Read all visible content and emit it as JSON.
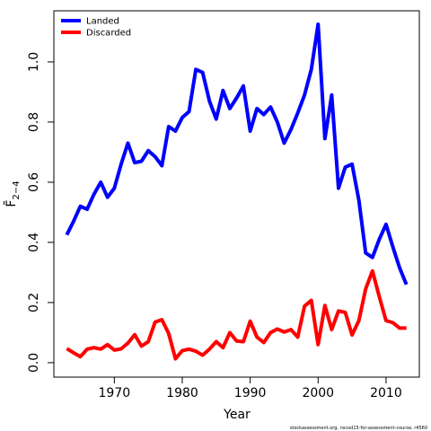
{
  "chart_data": {
    "type": "line",
    "x_label": "Year",
    "y_label": "F̄",
    "y_label_subscript": "2−4",
    "footnote": "stockassessment.org, nscod15-for-assessment-course, r4560",
    "x": [
      1963,
      1964,
      1965,
      1966,
      1967,
      1968,
      1969,
      1970,
      1971,
      1972,
      1973,
      1974,
      1975,
      1976,
      1977,
      1978,
      1979,
      1980,
      1981,
      1982,
      1983,
      1984,
      1985,
      1986,
      1987,
      1988,
      1989,
      1990,
      1991,
      1992,
      1993,
      1994,
      1995,
      1996,
      1997,
      1998,
      1999,
      2000,
      2001,
      2002,
      2003,
      2004,
      2005,
      2006,
      2007,
      2008,
      2009,
      2010,
      2011,
      2012,
      2013
    ],
    "series": [
      {
        "name": "Landed",
        "color": "#0000ff",
        "values": [
          0.425,
          0.47,
          0.52,
          0.51,
          0.56,
          0.6,
          0.55,
          0.58,
          0.66,
          0.73,
          0.665,
          0.67,
          0.705,
          0.685,
          0.655,
          0.785,
          0.77,
          0.815,
          0.835,
          0.975,
          0.965,
          0.87,
          0.81,
          0.905,
          0.845,
          0.88,
          0.92,
          0.77,
          0.845,
          0.825,
          0.85,
          0.8,
          0.73,
          0.775,
          0.83,
          0.89,
          0.975,
          1.125,
          0.745,
          0.89,
          0.58,
          0.65,
          0.66,
          0.54,
          0.365,
          0.35,
          0.41,
          0.46,
          0.385,
          0.315,
          0.26
        ]
      },
      {
        "name": "Discarded",
        "color": "#ff0000",
        "values": [
          0.047,
          0.033,
          0.02,
          0.045,
          0.05,
          0.045,
          0.06,
          0.042,
          0.046,
          0.065,
          0.093,
          0.055,
          0.07,
          0.135,
          0.143,
          0.097,
          0.013,
          0.04,
          0.045,
          0.038,
          0.025,
          0.045,
          0.07,
          0.05,
          0.1,
          0.072,
          0.07,
          0.138,
          0.085,
          0.067,
          0.1,
          0.112,
          0.102,
          0.11,
          0.085,
          0.188,
          0.207,
          0.06,
          0.19,
          0.11,
          0.172,
          0.167,
          0.092,
          0.14,
          0.245,
          0.305,
          0.22,
          0.14,
          0.133,
          0.115,
          0.115
        ]
      }
    ],
    "xlim": [
      1961.1,
      2014.9
    ],
    "xticks": [
      1970,
      1980,
      1990,
      2000,
      2010
    ],
    "ylim": [
      -0.048,
      1.17
    ],
    "yticks": [
      {
        "value": 0,
        "label": "0.0"
      },
      0.2,
      0.4,
      0.6,
      0.8,
      {
        "value": 1,
        "label": "1.0"
      }
    ],
    "legend": "top-left"
  }
}
